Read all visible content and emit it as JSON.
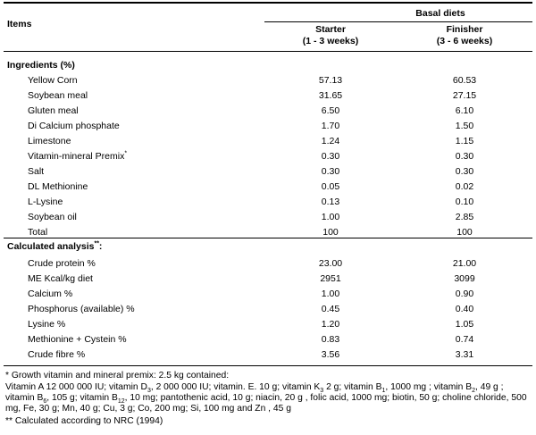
{
  "header": {
    "items_label": "Items",
    "group_label": "Basal diets",
    "col1_name": "Starter",
    "col1_period": "(1 - 3 weeks)",
    "col2_name": "Finisher",
    "col2_period": "(3 - 6 weeks)"
  },
  "ingredients": {
    "section_label": "Ingredients (%)",
    "rows": [
      {
        "name": "Yellow Corn",
        "starter": "57.13",
        "finisher": "60.53"
      },
      {
        "name": "Soybean meal",
        "starter": "31.65",
        "finisher": "27.15"
      },
      {
        "name": "Gluten meal",
        "starter": "6.50",
        "finisher": "6.10"
      },
      {
        "name": "Di Calcium phosphate",
        "starter": "1.70",
        "finisher": "1.50"
      },
      {
        "name": "Limestone",
        "starter": "1.24",
        "finisher": "1.15"
      },
      {
        "name": "Vitamin-mineral Premix",
        "sup": "*",
        "starter": "0.30",
        "finisher": "0.30"
      },
      {
        "name": "Salt",
        "starter": "0.30",
        "finisher": "0.30"
      },
      {
        "name": "DL Methionine",
        "starter": "0.05",
        "finisher": "0.02"
      },
      {
        "name": "L-Lysine",
        "starter": "0.13",
        "finisher": "0.10"
      },
      {
        "name": "Soybean oil",
        "starter": "1.00",
        "finisher": "2.85"
      },
      {
        "name": "Total",
        "starter": "100",
        "finisher": "100"
      }
    ]
  },
  "analysis": {
    "section_label": "Calculated analysis",
    "section_sup": "**",
    "section_suffix": ":",
    "rows": [
      {
        "name": "Crude protein %",
        "starter": "23.00",
        "finisher": "21.00"
      },
      {
        "name": "ME Kcal/kg diet",
        "starter": "2951",
        "finisher": "3099"
      },
      {
        "name": "Calcium %",
        "starter": "1.00",
        "finisher": "0.90"
      },
      {
        "name": "Phosphorus (available) %",
        "starter": "0.45",
        "finisher": "0.40"
      },
      {
        "name": "Lysine %",
        "starter": "1.20",
        "finisher": "1.05"
      },
      {
        "name": "Methionine + Cystein %",
        "starter": "0.83",
        "finisher": "0.74"
      },
      {
        "name": "Crude fibre %",
        "starter": "3.56",
        "finisher": "3.31"
      }
    ]
  },
  "footnotes": {
    "premix_title": "* Growth vitamin and mineral premix: 2.5 kg contained:",
    "premix_parts": [
      {
        "t": "Vitamin A 12 000 000 IU; vitamin D"
      },
      {
        "sub": "3"
      },
      {
        "t": ", 2 000 000 IU; vitamin. E. 10 g; vitamin K"
      },
      {
        "sub": "3"
      },
      {
        "t": " 2 g; vitamin B"
      },
      {
        "sub": "1"
      },
      {
        "t": ", 1000 mg ; vitamin B"
      },
      {
        "sub": "2"
      },
      {
        "t": ", 49 g ; vitamin B"
      },
      {
        "sub": "6"
      },
      {
        "t": ", 105 g; vitamin B"
      },
      {
        "sub": "12"
      },
      {
        "t": ", 10 mg; pantothenic acid, 10 g; niacin, 20 g , folic acid, 1000 mg; biotin, 50 g; choline chloride, 500 mg, Fe, 30 g; Mn, 40 g; Cu, 3 g; Co, 200 mg; Si, 100 mg and Zn , 45 g"
      }
    ],
    "nrc_note": "** Calculated according to NRC (1994)"
  }
}
